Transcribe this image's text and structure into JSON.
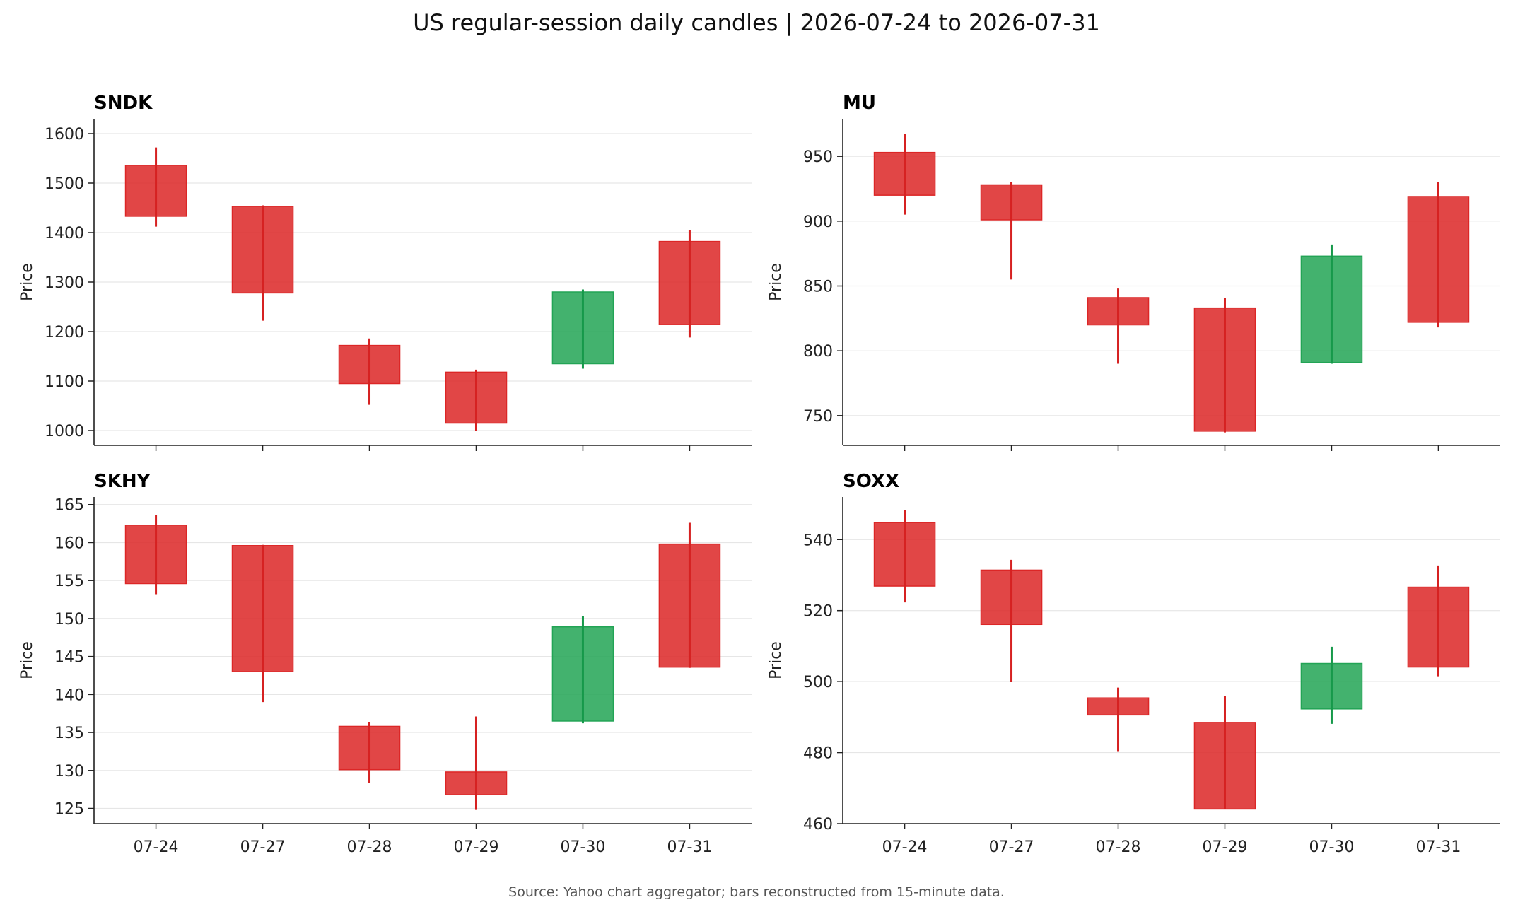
{
  "title": "US regular-session daily candles | 2026-07-24 to 2026-07-31",
  "footnote": "Source: Yahoo chart aggregator; bars reconstructed from 15-minute data.",
  "colors": {
    "up": "#22a455",
    "down": "#dc2626",
    "up_wick": "#16994a",
    "down_wick": "#d62121",
    "grid": "#e6e6e6",
    "axis": "#222222"
  },
  "chart_data": [
    {
      "type": "candlestick",
      "title": "SNDK",
      "ylabel": "Price",
      "categories": [
        "07-24",
        "07-27",
        "07-28",
        "07-29",
        "07-30",
        "07-31"
      ],
      "ylim": [
        970,
        1630
      ],
      "yticks": [
        1000,
        1100,
        1200,
        1300,
        1400,
        1500,
        1600
      ],
      "grid": true,
      "candles": [
        {
          "open": 1536,
          "high": 1572,
          "low": 1412,
          "close": 1433
        },
        {
          "open": 1453,
          "high": 1455,
          "low": 1222,
          "close": 1278
        },
        {
          "open": 1172,
          "high": 1186,
          "low": 1052,
          "close": 1095
        },
        {
          "open": 1118,
          "high": 1123,
          "low": 999,
          "close": 1015
        },
        {
          "open": 1135,
          "high": 1285,
          "low": 1125,
          "close": 1280
        },
        {
          "open": 1382,
          "high": 1405,
          "low": 1188,
          "close": 1214
        }
      ]
    },
    {
      "type": "candlestick",
      "title": "MU",
      "ylabel": "Price",
      "categories": [
        "07-24",
        "07-27",
        "07-28",
        "07-29",
        "07-30",
        "07-31"
      ],
      "ylim": [
        727,
        979
      ],
      "yticks": [
        750,
        800,
        850,
        900,
        950
      ],
      "grid": true,
      "candles": [
        {
          "open": 953,
          "high": 967,
          "low": 905,
          "close": 920
        },
        {
          "open": 928,
          "high": 930,
          "low": 855,
          "close": 901
        },
        {
          "open": 841,
          "high": 848,
          "low": 790,
          "close": 820
        },
        {
          "open": 833,
          "high": 841,
          "low": 737,
          "close": 738
        },
        {
          "open": 791,
          "high": 882,
          "low": 790,
          "close": 873
        },
        {
          "open": 919,
          "high": 930,
          "low": 818,
          "close": 822
        }
      ]
    },
    {
      "type": "candlestick",
      "title": "SKHY",
      "ylabel": "Price",
      "categories": [
        "07-24",
        "07-27",
        "07-28",
        "07-29",
        "07-30",
        "07-31"
      ],
      "ylim": [
        123,
        166
      ],
      "yticks": [
        125,
        130,
        135,
        140,
        145,
        150,
        155,
        160,
        165
      ],
      "grid": true,
      "candles": [
        {
          "open": 162.3,
          "high": 163.6,
          "low": 153.2,
          "close": 154.6
        },
        {
          "open": 159.6,
          "high": 159.7,
          "low": 139.0,
          "close": 143.0
        },
        {
          "open": 135.8,
          "high": 136.4,
          "low": 128.3,
          "close": 130.1
        },
        {
          "open": 129.8,
          "high": 137.1,
          "low": 124.8,
          "close": 126.8
        },
        {
          "open": 136.5,
          "high": 150.3,
          "low": 136.2,
          "close": 148.9
        },
        {
          "open": 159.8,
          "high": 162.6,
          "low": 143.5,
          "close": 143.6
        }
      ]
    },
    {
      "type": "candlestick",
      "title": "SOXX",
      "ylabel": "Price",
      "categories": [
        "07-24",
        "07-27",
        "07-28",
        "07-29",
        "07-30",
        "07-31"
      ],
      "ylim": [
        460,
        552
      ],
      "yticks": [
        460,
        480,
        500,
        520,
        540
      ],
      "grid": true,
      "candles": [
        {
          "open": 544.8,
          "high": 548.3,
          "low": 522.3,
          "close": 526.9
        },
        {
          "open": 531.4,
          "high": 534.3,
          "low": 500.0,
          "close": 516.1
        },
        {
          "open": 495.4,
          "high": 498.3,
          "low": 480.4,
          "close": 490.6
        },
        {
          "open": 488.5,
          "high": 496.0,
          "low": 464.1,
          "close": 464.1
        },
        {
          "open": 492.3,
          "high": 509.8,
          "low": 488.1,
          "close": 505.1
        },
        {
          "open": 526.6,
          "high": 532.7,
          "low": 501.5,
          "close": 504.1
        }
      ]
    }
  ]
}
